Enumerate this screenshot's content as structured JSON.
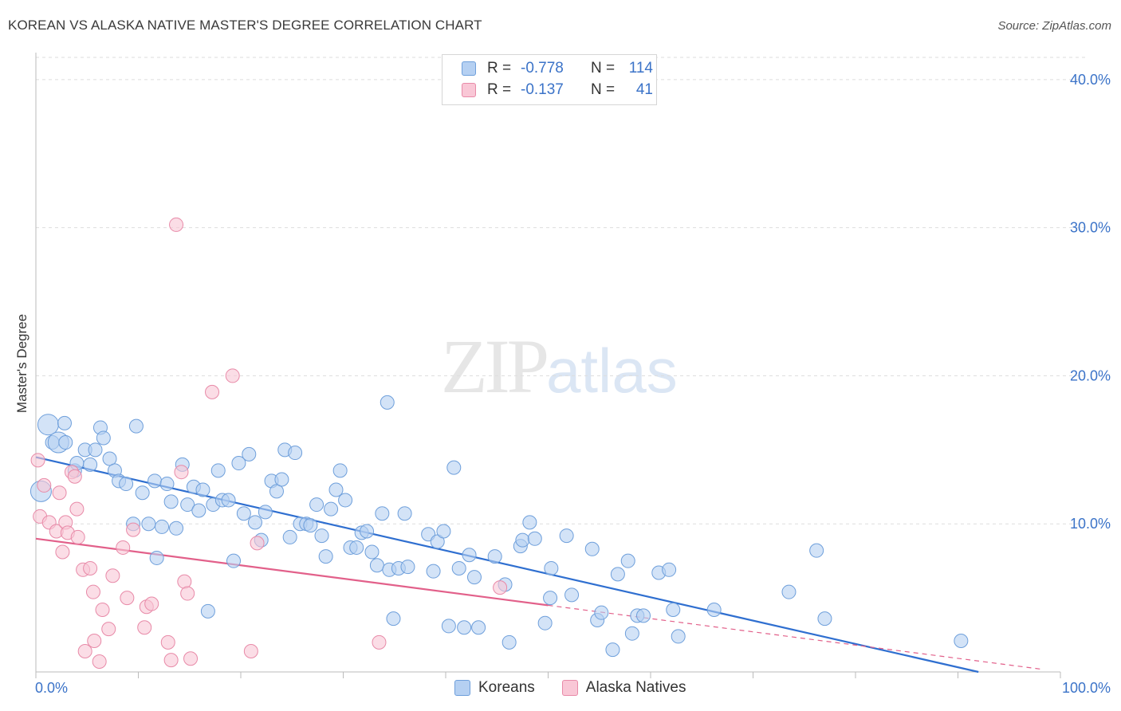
{
  "title": "KOREAN VS ALASKA NATIVE MASTER'S DEGREE CORRELATION CHART",
  "source": "Source: ZipAtlas.com",
  "watermark": {
    "zip": "ZIP",
    "atlas": "atlas"
  },
  "legend": {
    "r_label": "R =",
    "n_label": "N =",
    "rows": [
      {
        "name": "Koreans",
        "r": "-0.778",
        "n": "114"
      },
      {
        "name": "Alaska Natives",
        "r": "-0.137",
        "n": "41"
      }
    ]
  },
  "colors": {
    "koreans_fill": "#b5d0f2",
    "koreans_stroke": "#6e9fdb",
    "koreans_line": "#2f6fd0",
    "alaska_fill": "#f9c7d6",
    "alaska_stroke": "#e88aa8",
    "alaska_line": "#e2608a",
    "axis_label": "#3b73c8",
    "grid": "#dddddd"
  },
  "chart_data": {
    "type": "scatter",
    "title": "KOREAN VS ALASKA NATIVE MASTER'S DEGREE CORRELATION CHART",
    "xlabel": "",
    "ylabel": "Master's Degree",
    "xlim": [
      0,
      100
    ],
    "ylim": [
      0,
      41.5
    ],
    "x_tick_labels": [
      "0.0%",
      "100.0%"
    ],
    "y_ticks": [
      10,
      20,
      30,
      40
    ],
    "y_tick_labels": [
      "10.0%",
      "20.0%",
      "30.0%",
      "40.0%"
    ],
    "grid": true,
    "legend_position": "top-center",
    "series": [
      {
        "name": "Koreans",
        "r": -0.778,
        "n": 114,
        "trend": {
          "x": [
            0,
            92
          ],
          "y": [
            14.5,
            0
          ]
        },
        "points": [
          [
            0.5,
            12.2
          ],
          [
            1.2,
            16.7
          ],
          [
            1.6,
            15.5
          ],
          [
            2.2,
            15.5
          ],
          [
            2.8,
            16.8
          ],
          [
            2.9,
            15.5
          ],
          [
            3.8,
            13.6
          ],
          [
            4.0,
            14.1
          ],
          [
            4.8,
            15.0
          ],
          [
            5.3,
            14.0
          ],
          [
            5.8,
            15.0
          ],
          [
            6.3,
            16.5
          ],
          [
            6.6,
            15.8
          ],
          [
            7.2,
            14.4
          ],
          [
            7.7,
            13.6
          ],
          [
            8.1,
            12.9
          ],
          [
            8.8,
            12.7
          ],
          [
            9.5,
            10.0
          ],
          [
            9.8,
            16.6
          ],
          [
            10.4,
            12.1
          ],
          [
            11.0,
            10.0
          ],
          [
            11.6,
            12.9
          ],
          [
            11.8,
            7.7
          ],
          [
            12.3,
            9.8
          ],
          [
            12.8,
            12.7
          ],
          [
            13.2,
            11.5
          ],
          [
            13.7,
            9.7
          ],
          [
            14.3,
            14.0
          ],
          [
            14.8,
            11.3
          ],
          [
            15.4,
            12.5
          ],
          [
            15.9,
            10.9
          ],
          [
            16.3,
            12.3
          ],
          [
            16.8,
            4.1
          ],
          [
            17.3,
            11.3
          ],
          [
            17.8,
            13.6
          ],
          [
            18.2,
            11.6
          ],
          [
            18.8,
            11.6
          ],
          [
            19.3,
            7.5
          ],
          [
            19.8,
            14.1
          ],
          [
            20.3,
            10.7
          ],
          [
            20.8,
            14.7
          ],
          [
            21.4,
            10.1
          ],
          [
            22.0,
            8.9
          ],
          [
            22.4,
            10.8
          ],
          [
            23.0,
            12.9
          ],
          [
            23.5,
            12.2
          ],
          [
            24.0,
            13.0
          ],
          [
            24.3,
            15.0
          ],
          [
            24.8,
            9.1
          ],
          [
            25.3,
            14.8
          ],
          [
            25.8,
            10.0
          ],
          [
            26.4,
            10.0
          ],
          [
            26.8,
            9.9
          ],
          [
            27.4,
            11.3
          ],
          [
            27.9,
            9.2
          ],
          [
            28.3,
            7.8
          ],
          [
            28.8,
            11.0
          ],
          [
            29.3,
            12.3
          ],
          [
            29.7,
            13.6
          ],
          [
            30.2,
            11.6
          ],
          [
            30.7,
            8.4
          ],
          [
            31.3,
            8.4
          ],
          [
            31.8,
            9.4
          ],
          [
            32.3,
            9.5
          ],
          [
            32.8,
            8.1
          ],
          [
            33.3,
            7.2
          ],
          [
            33.8,
            10.7
          ],
          [
            34.3,
            18.2
          ],
          [
            34.5,
            6.9
          ],
          [
            34.9,
            3.6
          ],
          [
            35.4,
            7.0
          ],
          [
            36.0,
            10.7
          ],
          [
            36.3,
            7.1
          ],
          [
            38.3,
            9.3
          ],
          [
            38.8,
            6.8
          ],
          [
            39.2,
            8.8
          ],
          [
            39.8,
            9.5
          ],
          [
            40.3,
            3.1
          ],
          [
            40.8,
            13.8
          ],
          [
            41.3,
            7.0
          ],
          [
            41.8,
            3.0
          ],
          [
            42.3,
            7.9
          ],
          [
            42.8,
            6.4
          ],
          [
            43.2,
            3.0
          ],
          [
            44.8,
            7.8
          ],
          [
            45.8,
            5.9
          ],
          [
            46.2,
            2.0
          ],
          [
            47.3,
            8.5
          ],
          [
            47.5,
            8.9
          ],
          [
            48.2,
            10.1
          ],
          [
            48.7,
            9.0
          ],
          [
            49.7,
            3.3
          ],
          [
            50.2,
            5.0
          ],
          [
            50.3,
            7.0
          ],
          [
            51.8,
            9.2
          ],
          [
            52.3,
            5.2
          ],
          [
            54.3,
            8.3
          ],
          [
            54.8,
            3.5
          ],
          [
            55.2,
            4.0
          ],
          [
            56.3,
            1.5
          ],
          [
            56.8,
            6.6
          ],
          [
            57.8,
            7.5
          ],
          [
            58.2,
            2.6
          ],
          [
            58.7,
            3.8
          ],
          [
            59.3,
            3.8
          ],
          [
            60.8,
            6.7
          ],
          [
            61.8,
            6.9
          ],
          [
            62.2,
            4.2
          ],
          [
            62.7,
            2.4
          ],
          [
            66.2,
            4.2
          ],
          [
            73.5,
            5.4
          ],
          [
            76.2,
            8.2
          ],
          [
            77.0,
            3.6
          ],
          [
            90.3,
            2.1
          ]
        ],
        "large_points": [
          [
            1.2,
            16.7
          ],
          [
            2.2,
            15.5
          ],
          [
            0.5,
            12.2
          ]
        ]
      },
      {
        "name": "Alaska Natives",
        "r": -0.137,
        "n": 41,
        "trend": {
          "x": [
            0,
            50
          ],
          "y": [
            9.0,
            4.5
          ]
        },
        "trend_extension": {
          "x": [
            50,
            98
          ],
          "y": [
            4.5,
            0.2
          ]
        },
        "points": [
          [
            0.2,
            14.3
          ],
          [
            0.4,
            10.5
          ],
          [
            0.8,
            12.6
          ],
          [
            1.3,
            10.1
          ],
          [
            2.0,
            9.5
          ],
          [
            2.3,
            12.1
          ],
          [
            2.6,
            8.1
          ],
          [
            2.9,
            10.1
          ],
          [
            3.1,
            9.4
          ],
          [
            3.5,
            13.5
          ],
          [
            3.8,
            13.2
          ],
          [
            4.0,
            11.0
          ],
          [
            4.1,
            9.1
          ],
          [
            4.6,
            6.9
          ],
          [
            4.8,
            1.4
          ],
          [
            5.3,
            7.0
          ],
          [
            5.6,
            5.4
          ],
          [
            5.7,
            2.1
          ],
          [
            6.2,
            0.7
          ],
          [
            6.5,
            4.2
          ],
          [
            7.1,
            2.9
          ],
          [
            7.5,
            6.5
          ],
          [
            8.5,
            8.4
          ],
          [
            8.9,
            5.0
          ],
          [
            9.5,
            9.6
          ],
          [
            10.6,
            3.0
          ],
          [
            10.8,
            4.4
          ],
          [
            11.3,
            4.6
          ],
          [
            12.9,
            2.0
          ],
          [
            13.2,
            0.8
          ],
          [
            13.7,
            30.2
          ],
          [
            14.2,
            13.5
          ],
          [
            14.5,
            6.1
          ],
          [
            14.8,
            5.3
          ],
          [
            15.1,
            0.9
          ],
          [
            17.2,
            18.9
          ],
          [
            19.2,
            20.0
          ],
          [
            21.0,
            1.4
          ],
          [
            21.6,
            8.7
          ],
          [
            33.5,
            2.0
          ],
          [
            45.3,
            5.7
          ]
        ]
      }
    ]
  }
}
